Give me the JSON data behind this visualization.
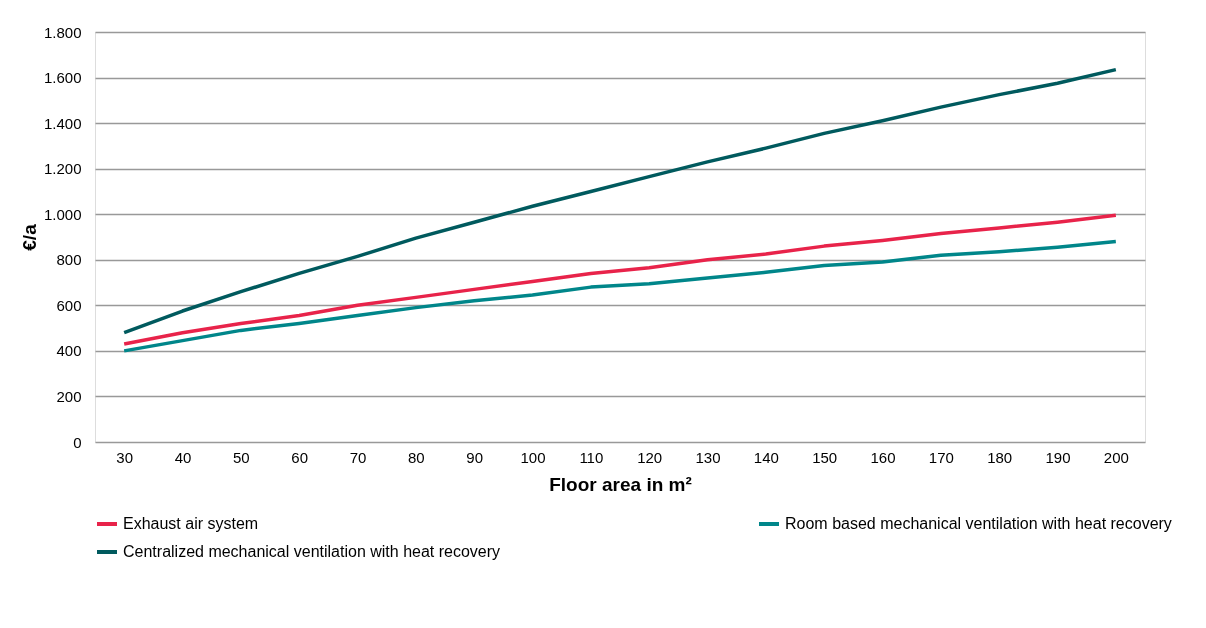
{
  "chart_data": {
    "type": "line",
    "xlabel": "Floor area in m²",
    "ylabel": "€/a",
    "categories": [
      "30",
      "40",
      "50",
      "60",
      "70",
      "80",
      "90",
      "100",
      "110",
      "120",
      "130",
      "140",
      "150",
      "160",
      "170",
      "180",
      "190",
      "200"
    ],
    "series": [
      {
        "name": "Exhaust air system",
        "color": "#e8234a",
        "values": [
          430,
          480,
          520,
          555,
          600,
          635,
          670,
          705,
          740,
          765,
          800,
          825,
          860,
          885,
          915,
          940,
          965,
          995
        ]
      },
      {
        "name": "Room based mechanical ventilation with heat recovery",
        "color": "#00868a",
        "values": [
          400,
          445,
          490,
          520,
          555,
          590,
          620,
          645,
          680,
          695,
          720,
          745,
          775,
          790,
          820,
          835,
          855,
          880
        ]
      },
      {
        "name": "Centralized mechanical ventilation with heat recovery",
        "color": "#005a5e",
        "values": [
          480,
          575,
          660,
          740,
          815,
          895,
          965,
          1035,
          1100,
          1165,
          1230,
          1290,
          1355,
          1410,
          1470,
          1525,
          1575,
          1635
        ]
      }
    ],
    "ylim": [
      0,
      1800
    ],
    "yticks": [
      0,
      200,
      400,
      600,
      800,
      {
        "value": 1000,
        "label": "1.000"
      },
      {
        "value": 1200,
        "label": "1.200"
      },
      {
        "value": 1400,
        "label": "1.400"
      },
      {
        "value": 1600,
        "label": "1.600"
      },
      {
        "value": 1800,
        "label": "1.800"
      }
    ],
    "grid": "y",
    "legend": "bottom",
    "marker": "none",
    "line_style": "solid"
  }
}
